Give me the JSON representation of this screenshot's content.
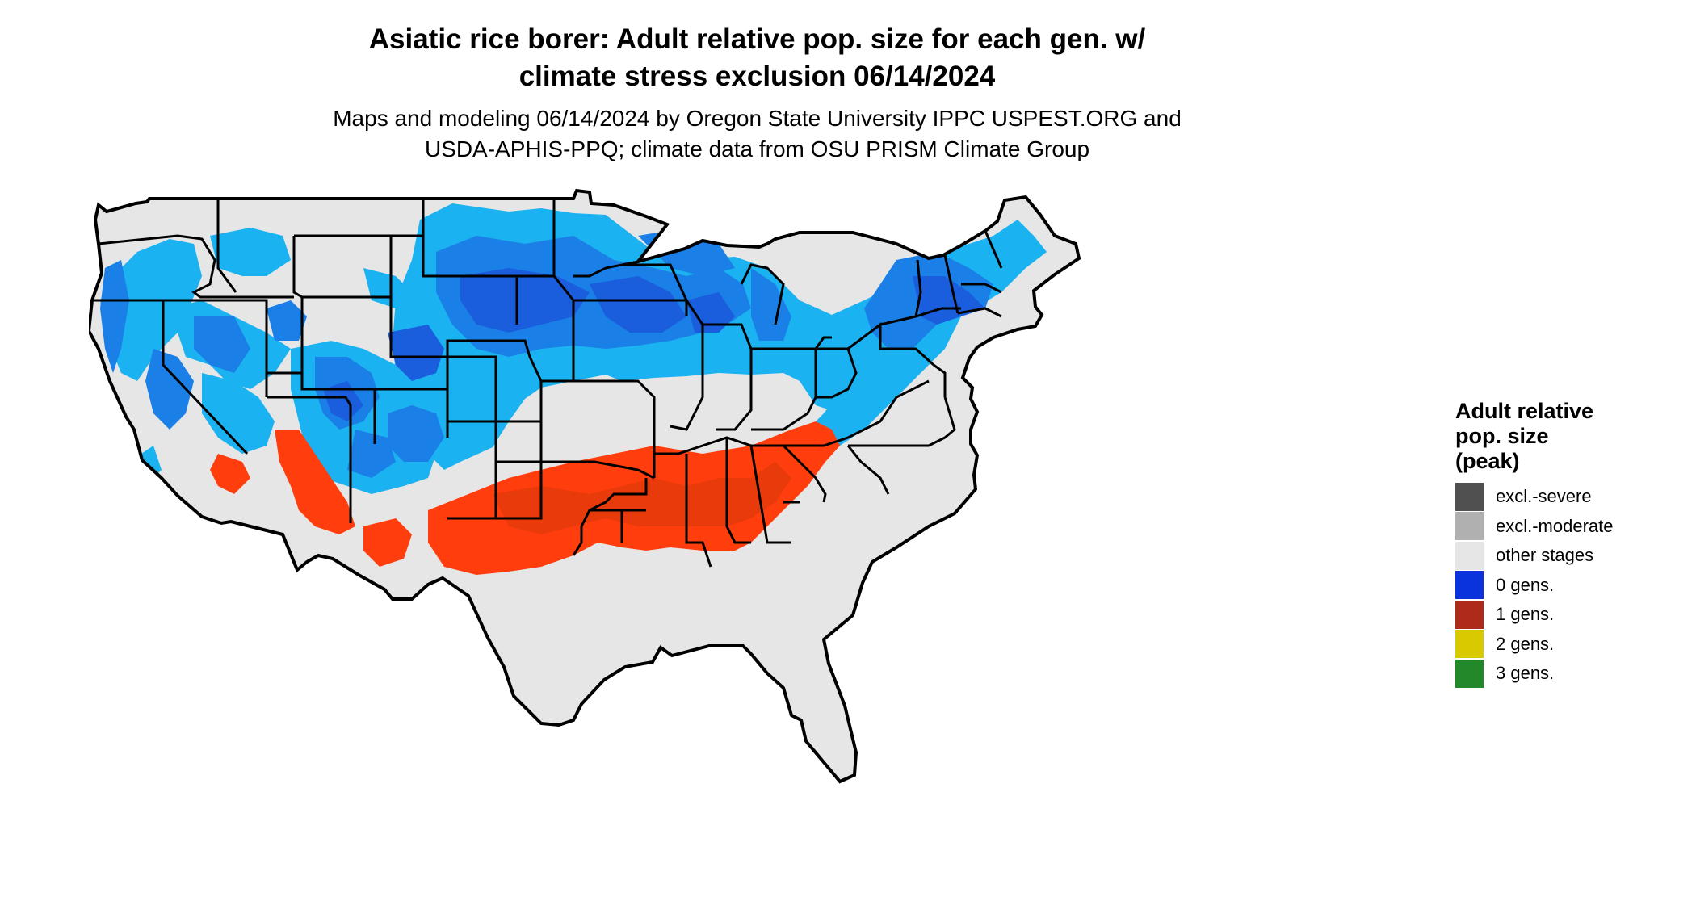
{
  "title_line1": "Asiatic rice borer: Adult relative pop. size for each gen. w/",
  "title_line2": "climate stress exclusion 06/14/2024",
  "subtitle_line1": "Maps and modeling 06/14/2024 by Oregon State University IPPC USPEST.ORG and",
  "subtitle_line2": "USDA-APHIS-PPQ; climate data from OSU PRISM Climate Group",
  "legend": {
    "title_line1": "Adult relative",
    "title_line2": "pop. size",
    "title_line3": "(peak)",
    "items": [
      {
        "label": "excl.-severe",
        "color": "#505050"
      },
      {
        "label": "excl.-moderate",
        "color": "#b0b0b0"
      },
      {
        "label": "other stages",
        "color": "#e6e6e6"
      },
      {
        "label": "0 gens.",
        "color": "#0a33dd"
      },
      {
        "label": "1 gens.",
        "color": "#ae2a1a"
      },
      {
        "label": "2 gens.",
        "color": "#d9c900"
      },
      {
        "label": "3 gens.",
        "color": "#22882a"
      }
    ]
  },
  "map_colors": {
    "land": "#e6e6e6",
    "light_blue": "#1ab2f0",
    "mid_blue": "#1a7fe6",
    "dark_blue": "#1a5ddd",
    "orange": "#ff3d0d",
    "dark_orange": "#e83a0a",
    "yellow": "#f1ea1c",
    "border": "#000000"
  }
}
